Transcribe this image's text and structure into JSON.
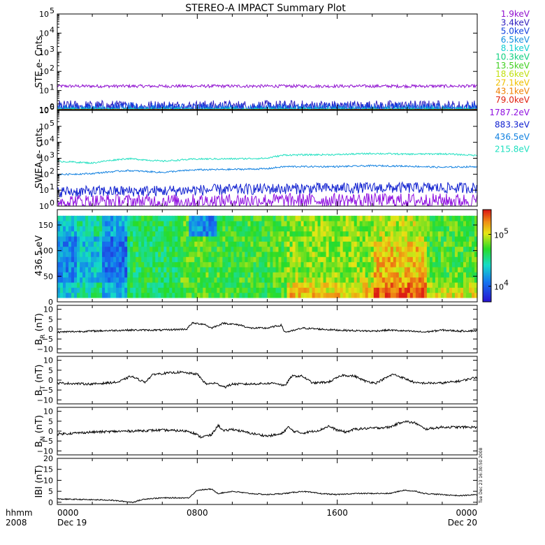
{
  "title": "STEREO-A IMPACT Summary Plot",
  "footer": {
    "time_label": "hhmm",
    "year_label": "2008",
    "date_start": "Dec 19",
    "date_end": "Dec 20",
    "stamp": "Tue Dec 23 16:30:50 2008"
  },
  "colors": {
    "line": "#000000",
    "bg": "#ffffff"
  },
  "chart_data": [
    {
      "type": "line",
      "id": "ste",
      "ylabel": "STE e- Cnts",
      "yscale": "log",
      "ylim": [
        1,
        100000
      ],
      "yticks": [
        {
          "value": 1,
          "label": "10"
        },
        {
          "value": 10,
          "label": "10"
        },
        {
          "value": 100,
          "label": "10"
        },
        {
          "value": 1000,
          "label": "10"
        },
        {
          "value": 10000,
          "label": "10"
        },
        {
          "value": 100000,
          "label": "10"
        }
      ],
      "ytick_exps": [
        "0",
        "1",
        "2",
        "3",
        "4",
        "5"
      ],
      "series": [
        {
          "name": "1.9keV",
          "color": "#9010d0",
          "level": 17,
          "spread": 0.08
        },
        {
          "name": "3.4keV",
          "color": "#3020c0",
          "level": 1.4,
          "spread": 0.35
        },
        {
          "name": "5.0keV",
          "color": "#1040e0",
          "level": 1.2,
          "spread": 0.3
        },
        {
          "name": "6.5keV",
          "color": "#1090e0",
          "level": 1.05,
          "spread": 0.2
        },
        {
          "name": "8.1keV",
          "color": "#10d0d0",
          "level": 1.0,
          "spread": 0.1
        },
        {
          "name": "10.3keV",
          "color": "#10d080",
          "level": 1.0,
          "spread": 0.05
        },
        {
          "name": "13.5keV",
          "color": "#40d020",
          "level": 1.0,
          "spread": 0.02
        },
        {
          "name": "18.6keV",
          "color": "#c0e010",
          "level": 1.0,
          "spread": 0.02
        },
        {
          "name": "27.1keV",
          "color": "#f0c000",
          "level": 1.0,
          "spread": 0.02
        },
        {
          "name": "43.1keV",
          "color": "#f08000",
          "level": 1.0,
          "spread": 0.02
        },
        {
          "name": "79.0keV",
          "color": "#e02010",
          "level": 1.0,
          "spread": 0.02
        }
      ]
    },
    {
      "type": "line",
      "id": "swea",
      "ylabel": "SWEA e- cnts",
      "yscale": "log",
      "ylim": [
        1,
        1000000
      ],
      "yticks": [
        {
          "value": 1,
          "label": "10"
        },
        {
          "value": 10,
          "label": "10"
        },
        {
          "value": 100,
          "label": "10"
        },
        {
          "value": 1000,
          "label": "10"
        },
        {
          "value": 10000,
          "label": "10"
        },
        {
          "value": 100000,
          "label": "10"
        },
        {
          "value": 1000000,
          "label": "10"
        }
      ],
      "ytick_exps": [
        "0",
        "1",
        "2",
        "3",
        "4",
        "5",
        "6"
      ],
      "series": [
        {
          "name": "1787.2eV",
          "color": "#9010e0",
          "profile": [
            [
              0,
              2
            ],
            [
              6,
              2
            ],
            [
              12,
              2.3
            ],
            [
              18,
              2.3
            ],
            [
              24,
              2.2
            ]
          ],
          "spread": 0.45
        },
        {
          "name": "883.3eV",
          "color": "#1020d0",
          "profile": [
            [
              0,
              8
            ],
            [
              6,
              9
            ],
            [
              12,
              12
            ],
            [
              18,
              14
            ],
            [
              24,
              14
            ]
          ],
          "spread": 0.35
        },
        {
          "name": "436.5eV",
          "color": "#1080e0",
          "profile": [
            [
              0,
              95
            ],
            [
              2,
              110
            ],
            [
              4,
              170
            ],
            [
              6,
              130
            ],
            [
              8,
              190
            ],
            [
              10,
              200
            ],
            [
              12,
              220
            ],
            [
              13,
              300
            ],
            [
              16,
              300
            ],
            [
              18,
              340
            ],
            [
              20,
              320
            ],
            [
              22,
              270
            ],
            [
              24,
              300
            ]
          ],
          "spread": 0.05
        },
        {
          "name": "215.8eV",
          "color": "#20e0c0",
          "profile": [
            [
              0,
              650
            ],
            [
              2,
              500
            ],
            [
              4,
              950
            ],
            [
              6,
              650
            ],
            [
              8,
              900
            ],
            [
              10,
              920
            ],
            [
              12,
              1000
            ],
            [
              13,
              1600
            ],
            [
              16,
              1700
            ],
            [
              18,
              2000
            ],
            [
              20,
              1800
            ],
            [
              22,
              1900
            ],
            [
              24,
              1500
            ]
          ],
          "spread": 0.05
        }
      ]
    },
    {
      "type": "heatmap",
      "id": "pad",
      "ylabel": "436.5 eV",
      "ylim": [
        0,
        180
      ],
      "yticks": [
        0,
        50,
        100,
        150
      ],
      "ytick_labels": [
        "0",
        "50",
        "100",
        "150"
      ],
      "colorbar": {
        "scale": "log",
        "ticks": [
          {
            "value": 10000,
            "base": "10",
            "exp": "4"
          },
          {
            "value": 100000,
            "base": "10",
            "exp": "5"
          }
        ],
        "range": [
          5000,
          300000
        ]
      }
    },
    {
      "type": "line",
      "id": "br",
      "ylabel_main": "B",
      "ylabel_sub": "R",
      "ylabel_unit": " (nT)",
      "ylim": [
        -12,
        12
      ],
      "yticks": [
        -10,
        -5,
        0,
        5,
        10
      ],
      "ytick_labels": [
        "−10",
        "−5",
        "0",
        "5",
        "10"
      ],
      "profile": [
        [
          0,
          -1.5
        ],
        [
          2,
          -1
        ],
        [
          4,
          -0.5
        ],
        [
          6,
          -0.5
        ],
        [
          7.4,
          0
        ],
        [
          7.7,
          3
        ],
        [
          8.4,
          2.5
        ],
        [
          8.8,
          0.5
        ],
        [
          9.5,
          3
        ],
        [
          10.5,
          2
        ],
        [
          11,
          0.5
        ],
        [
          12,
          0.5
        ],
        [
          12.8,
          2
        ],
        [
          13,
          -1.5
        ],
        [
          13.4,
          -1
        ],
        [
          14,
          0.5
        ],
        [
          15,
          0
        ],
        [
          16,
          -0.5
        ],
        [
          17,
          -0.8
        ],
        [
          18,
          -1
        ],
        [
          19,
          -0.5
        ],
        [
          20,
          -1
        ],
        [
          21,
          -1.5
        ],
        [
          22,
          -0.5
        ],
        [
          23,
          -1
        ],
        [
          24,
          -0.8
        ]
      ],
      "noise": 0.45
    },
    {
      "type": "line",
      "id": "bt",
      "ylabel_main": "B",
      "ylabel_sub": "T",
      "ylabel_unit": " (nT)",
      "ylim": [
        -12,
        12
      ],
      "yticks": [
        -10,
        -5,
        0,
        5,
        10
      ],
      "ytick_labels": [
        "−10",
        "−5",
        "0",
        "5",
        "10"
      ],
      "profile": [
        [
          0,
          -1.5
        ],
        [
          2,
          -2
        ],
        [
          3.5,
          -1
        ],
        [
          4.2,
          2
        ],
        [
          5,
          -1
        ],
        [
          5.5,
          3
        ],
        [
          7,
          4
        ],
        [
          8,
          3
        ],
        [
          8.5,
          -2
        ],
        [
          9,
          -1.5
        ],
        [
          9.6,
          -3.5
        ],
        [
          10,
          -2
        ],
        [
          11,
          -2
        ],
        [
          12.5,
          -1.5
        ],
        [
          13,
          -3
        ],
        [
          13.4,
          2
        ],
        [
          14,
          2
        ],
        [
          14.6,
          -1.5
        ],
        [
          15.5,
          -1
        ],
        [
          16.3,
          2.5
        ],
        [
          17,
          2
        ],
        [
          17.6,
          -0.5
        ],
        [
          18.2,
          -1.5
        ],
        [
          19.2,
          3
        ],
        [
          19.8,
          1
        ],
        [
          20.5,
          -1.5
        ],
        [
          22,
          -1.5
        ],
        [
          23,
          -0.5
        ],
        [
          24,
          1.5
        ]
      ],
      "noise": 0.55
    },
    {
      "type": "line",
      "id": "bn",
      "ylabel_main": "B",
      "ylabel_sub": "N",
      "ylabel_unit": " (nT)",
      "ylim": [
        -12,
        12
      ],
      "yticks": [
        -10,
        -5,
        0,
        5,
        10
      ],
      "ytick_labels": [
        "−10",
        "−5",
        "0",
        "5",
        "10"
      ],
      "profile": [
        [
          0,
          -1.5
        ],
        [
          2,
          -0.5
        ],
        [
          4,
          0
        ],
        [
          6,
          0.5
        ],
        [
          7.5,
          0
        ],
        [
          7.8,
          -1
        ],
        [
          8.2,
          -3
        ],
        [
          8.8,
          -2
        ],
        [
          9.2,
          3
        ],
        [
          9.5,
          0
        ],
        [
          10,
          1
        ],
        [
          11,
          -1
        ],
        [
          12,
          -2.5
        ],
        [
          12.8,
          -1.5
        ],
        [
          13.2,
          2
        ],
        [
          13.5,
          0
        ],
        [
          14,
          -1
        ],
        [
          15,
          0.5
        ],
        [
          15.5,
          2.5
        ],
        [
          16,
          0.5
        ],
        [
          16.5,
          -0.5
        ],
        [
          17,
          1
        ],
        [
          18,
          1.5
        ],
        [
          19,
          2
        ],
        [
          19.8,
          5
        ],
        [
          20.5,
          4
        ],
        [
          21,
          1
        ],
        [
          22,
          2
        ],
        [
          23,
          2
        ],
        [
          24,
          2
        ]
      ],
      "noise": 0.6
    },
    {
      "type": "line",
      "id": "bmag",
      "ylabel_main": "IBI",
      "ylabel_sub": "",
      "ylabel_unit": " (nT)",
      "ylim": [
        -1,
        20
      ],
      "yticks": [
        0,
        5,
        10,
        15,
        20
      ],
      "ytick_labels": [
        "0",
        "5",
        "10",
        "15",
        "20"
      ],
      "profile": [
        [
          0,
          1.5
        ],
        [
          3,
          1
        ],
        [
          4.3,
          0
        ],
        [
          5,
          1.5
        ],
        [
          6,
          2
        ],
        [
          7.5,
          2
        ],
        [
          8,
          5.5
        ],
        [
          8.8,
          6
        ],
        [
          9.2,
          4
        ],
        [
          10,
          5
        ],
        [
          11,
          4
        ],
        [
          12,
          3.5
        ],
        [
          13,
          4
        ],
        [
          14,
          5
        ],
        [
          15,
          4
        ],
        [
          16,
          3.5
        ],
        [
          17,
          4
        ],
        [
          18,
          4
        ],
        [
          19,
          4
        ],
        [
          19.8,
          5.5
        ],
        [
          20.5,
          5
        ],
        [
          21,
          4
        ],
        [
          22,
          3.5
        ],
        [
          23,
          3
        ],
        [
          24,
          3.5
        ]
      ],
      "noise": 0.25
    }
  ],
  "time_axis": {
    "range_hours": [
      0,
      24
    ],
    "ticks": [
      {
        "hour": 0,
        "label": "0000"
      },
      {
        "hour": 8,
        "label": "0800"
      },
      {
        "hour": 16,
        "label": "1600"
      },
      {
        "hour": 24,
        "label": "0000"
      }
    ]
  }
}
